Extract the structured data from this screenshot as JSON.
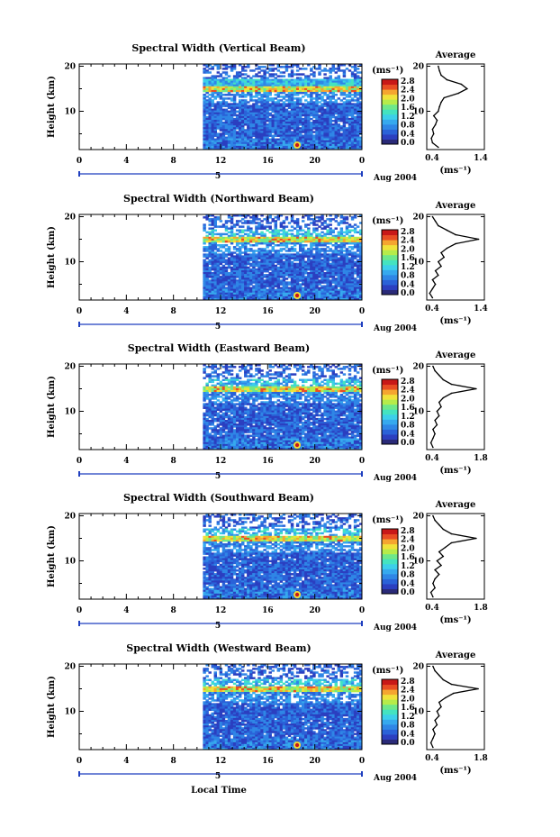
{
  "colors": {
    "colorbar": [
      "#2a2a78",
      "#2b3fc0",
      "#2a62d8",
      "#2f86e6",
      "#36a9ee",
      "#3ccfea",
      "#44e3c0",
      "#6ee88a",
      "#b6ec4a",
      "#f0e23a",
      "#f5a530",
      "#e84d24",
      "#c81818"
    ],
    "line": "#000000",
    "time_axis_marker": "#1f3fbf"
  },
  "chart_data": [
    {
      "type": "heatmap",
      "title": "Spectral Width (Vertical Beam)",
      "ylabel": "Height (km)",
      "x_ticks": [
        "0",
        "4",
        "8",
        "12",
        "16",
        "20",
        "0"
      ],
      "y_ticks": [
        "20",
        "10"
      ],
      "xlim": [
        0,
        24
      ],
      "ylim": [
        1.5,
        20.5
      ],
      "data_start_hour": 10.5,
      "date_marker": "5",
      "date_label": "Aug 2004",
      "colorbar_unit": "(ms⁻¹)",
      "colorbar_ticks": [
        "2.8",
        "2.4",
        "2.0",
        "1.6",
        "1.2",
        "0.8",
        "0.4",
        "0.0"
      ],
      "profile": {
        "title": "Average",
        "x_ticks": [
          "0.4",
          "1.4"
        ],
        "y_ticks": [
          "20",
          "10"
        ],
        "xlim": [
          0.4,
          1.4
        ],
        "xlabel": "(ms⁻¹)",
        "heights": [
          2,
          3,
          4,
          5,
          6,
          7,
          8,
          9,
          10,
          11,
          12,
          13,
          14,
          15,
          16,
          17,
          18,
          19,
          20
        ],
        "values": [
          0.6,
          0.5,
          0.48,
          0.52,
          0.5,
          0.55,
          0.58,
          0.52,
          0.6,
          0.62,
          0.65,
          0.7,
          0.95,
          1.1,
          1.0,
          0.75,
          0.65,
          0.62,
          0.6
        ]
      }
    },
    {
      "type": "heatmap",
      "title": "Spectral Width (Northward Beam)",
      "ylabel": "Height (km)",
      "x_ticks": [
        "0",
        "4",
        "8",
        "12",
        "16",
        "20",
        "0"
      ],
      "y_ticks": [
        "20",
        "10"
      ],
      "xlim": [
        0,
        24
      ],
      "ylim": [
        1.5,
        20.5
      ],
      "data_start_hour": 10.5,
      "date_marker": "5",
      "date_label": "Aug 2004",
      "colorbar_unit": "(ms⁻¹)",
      "colorbar_ticks": [
        "2.8",
        "2.4",
        "2.0",
        "1.6",
        "1.2",
        "0.8",
        "0.4",
        "0.0"
      ],
      "profile": {
        "title": "Average",
        "x_ticks": [
          "0.4",
          "1.4"
        ],
        "y_ticks": [
          "20",
          "10"
        ],
        "xlim": [
          0.4,
          1.4
        ],
        "xlabel": "(ms⁻¹)",
        "heights": [
          2,
          3,
          4,
          5,
          6,
          7,
          8,
          9,
          10,
          11,
          12,
          13,
          14,
          15,
          16,
          17,
          18,
          19,
          20
        ],
        "values": [
          0.5,
          0.45,
          0.5,
          0.55,
          0.5,
          0.6,
          0.55,
          0.65,
          0.6,
          0.7,
          0.65,
          0.75,
          0.9,
          1.3,
          0.9,
          0.75,
          0.6,
          0.55,
          0.5
        ]
      }
    },
    {
      "type": "heatmap",
      "title": "Spectral Width (Eastward Beam)",
      "ylabel": "Height (km)",
      "x_ticks": [
        "0",
        "4",
        "8",
        "12",
        "16",
        "20",
        "0"
      ],
      "y_ticks": [
        "20",
        "10"
      ],
      "xlim": [
        0,
        24
      ],
      "ylim": [
        1.5,
        20.5
      ],
      "data_start_hour": 10.5,
      "date_marker": "5",
      "date_label": "Aug 2004",
      "colorbar_unit": "(ms⁻¹)",
      "colorbar_ticks": [
        "2.8",
        "2.4",
        "2.0",
        "1.6",
        "1.2",
        "0.8",
        "0.4",
        "0.0"
      ],
      "profile": {
        "title": "Average",
        "x_ticks": [
          "0.4",
          "1.8"
        ],
        "y_ticks": [
          "20",
          "10"
        ],
        "xlim": [
          0.4,
          1.8
        ],
        "xlabel": "(ms⁻¹)",
        "heights": [
          2,
          3,
          4,
          5,
          6,
          7,
          8,
          9,
          10,
          11,
          12,
          13,
          14,
          15,
          16,
          17,
          18,
          19,
          20
        ],
        "values": [
          0.55,
          0.5,
          0.55,
          0.6,
          0.55,
          0.65,
          0.6,
          0.7,
          0.65,
          0.75,
          0.7,
          0.8,
          1.0,
          1.6,
          1.0,
          0.8,
          0.7,
          0.6,
          0.55
        ]
      }
    },
    {
      "type": "heatmap",
      "title": "Spectral Width (Southward Beam)",
      "ylabel": "Height (km)",
      "x_ticks": [
        "0",
        "4",
        "8",
        "12",
        "16",
        "20",
        "0"
      ],
      "y_ticks": [
        "20",
        "10"
      ],
      "xlim": [
        0,
        24
      ],
      "ylim": [
        1.5,
        20.5
      ],
      "data_start_hour": 10.5,
      "date_marker": "5",
      "date_label": "Aug 2004",
      "colorbar_unit": "(ms⁻¹)",
      "colorbar_ticks": [
        "2.8",
        "2.4",
        "2.0",
        "1.6",
        "1.2",
        "0.8",
        "0.4",
        "0.0"
      ],
      "profile": {
        "title": "Average",
        "x_ticks": [
          "0.4",
          "1.8"
        ],
        "y_ticks": [
          "20",
          "10"
        ],
        "xlim": [
          0.4,
          1.8
        ],
        "xlabel": "(ms⁻¹)",
        "heights": [
          2,
          3,
          4,
          5,
          6,
          7,
          8,
          9,
          10,
          11,
          12,
          13,
          14,
          15,
          16,
          17,
          18,
          19,
          20
        ],
        "values": [
          0.55,
          0.5,
          0.6,
          0.55,
          0.6,
          0.7,
          0.6,
          0.75,
          0.65,
          0.8,
          0.7,
          0.85,
          1.0,
          1.6,
          1.0,
          0.8,
          0.7,
          0.6,
          0.55
        ]
      }
    },
    {
      "type": "heatmap",
      "title": "Spectral Width (Westward Beam)",
      "ylabel": "Height (km)",
      "x_ticks": [
        "0",
        "4",
        "8",
        "12",
        "16",
        "20",
        "0"
      ],
      "y_ticks": [
        "20",
        "10"
      ],
      "xlim": [
        0,
        24
      ],
      "ylim": [
        1.5,
        20.5
      ],
      "data_start_hour": 10.5,
      "date_marker": "5",
      "date_label": "Aug 2004",
      "colorbar_unit": "(ms⁻¹)",
      "colorbar_ticks": [
        "2.8",
        "2.4",
        "2.0",
        "1.6",
        "1.2",
        "0.8",
        "0.4",
        "0.0"
      ],
      "xlabel": "Local Time",
      "profile": {
        "title": "Average",
        "x_ticks": [
          "0.4",
          "1.8"
        ],
        "y_ticks": [
          "20",
          "10"
        ],
        "xlim": [
          0.4,
          1.8
        ],
        "xlabel": "(ms⁻¹)",
        "heights": [
          2,
          3,
          4,
          5,
          6,
          7,
          8,
          9,
          10,
          11,
          12,
          13,
          14,
          15,
          16,
          17,
          18,
          19,
          20
        ],
        "values": [
          0.55,
          0.5,
          0.55,
          0.6,
          0.55,
          0.65,
          0.6,
          0.7,
          0.65,
          0.75,
          0.7,
          0.85,
          1.05,
          1.65,
          1.0,
          0.8,
          0.7,
          0.6,
          0.55
        ]
      }
    }
  ]
}
